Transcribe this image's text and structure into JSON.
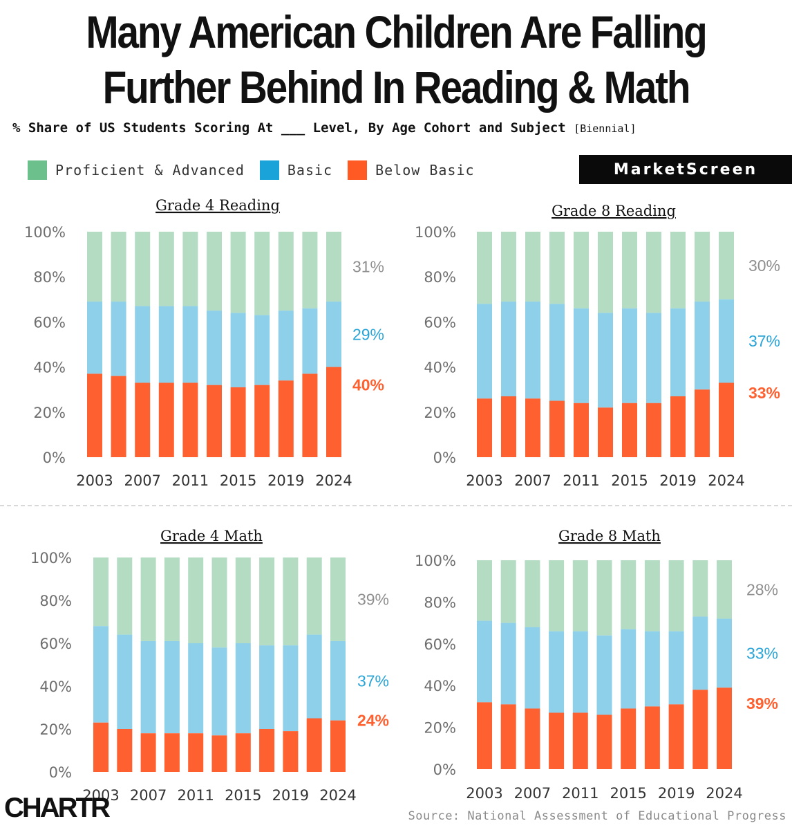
{
  "header": {
    "title_line1": "Many American Children Are Falling",
    "title_line2": "Further Behind In Reading & Math",
    "subtitle": "% Share of US Students Scoring At ___ Level, By Age Cohort and Subject",
    "subtitle_tag": "[Biennial]",
    "brand": "MarketScreen"
  },
  "legend": [
    {
      "label": "Proficient & Advanced",
      "color": "#6cc08b"
    },
    {
      "label": "Basic",
      "color": "#1aa3d8"
    },
    {
      "label": "Below Basic",
      "color": "#ff5a24"
    }
  ],
  "colors": {
    "proficient": "#b3dcc3",
    "basic": "#8ecfea",
    "below": "#fe602f",
    "label_proficient": "#8f8f8f",
    "label_basic": "#2aa4d6",
    "label_below": "#fe602f"
  },
  "chart_data": [
    {
      "type": "bar",
      "stacked": true,
      "title": "Grade 4 Reading",
      "categories": [
        "2003",
        "2005",
        "2007",
        "2009",
        "2011",
        "2013",
        "2015",
        "2017",
        "2019",
        "2022",
        "2024"
      ],
      "x_tick_labels": [
        "2003",
        "2007",
        "2011",
        "2015",
        "2019",
        "2024"
      ],
      "y_tick_labels": [
        "0%",
        "20%",
        "40%",
        "60%",
        "80%",
        "100%"
      ],
      "ylim": [
        0,
        100
      ],
      "series": [
        {
          "name": "Below Basic",
          "values": [
            37,
            36,
            33,
            33,
            33,
            32,
            31,
            32,
            34,
            37,
            40
          ]
        },
        {
          "name": "Basic",
          "values": [
            32,
            33,
            34,
            34,
            34,
            33,
            33,
            31,
            31,
            29,
            29
          ]
        },
        {
          "name": "Proficient & Advanced",
          "values": [
            31,
            31,
            33,
            33,
            33,
            35,
            36,
            37,
            35,
            34,
            31
          ]
        }
      ],
      "end_labels": {
        "proficient": "31%",
        "basic": "29%",
        "below": "40%"
      }
    },
    {
      "type": "bar",
      "stacked": true,
      "title": "Grade 8 Reading",
      "categories": [
        "2003",
        "2005",
        "2007",
        "2009",
        "2011",
        "2013",
        "2015",
        "2017",
        "2019",
        "2022",
        "2024"
      ],
      "x_tick_labels": [
        "2003",
        "2007",
        "2011",
        "2015",
        "2019",
        "2024"
      ],
      "y_tick_labels": [
        "0%",
        "20%",
        "40%",
        "60%",
        "80%",
        "100%"
      ],
      "ylim": [
        0,
        100
      ],
      "series": [
        {
          "name": "Below Basic",
          "values": [
            26,
            27,
            26,
            25,
            24,
            22,
            24,
            24,
            27,
            30,
            33
          ]
        },
        {
          "name": "Basic",
          "values": [
            42,
            42,
            43,
            43,
            42,
            42,
            42,
            40,
            39,
            39,
            37
          ]
        },
        {
          "name": "Proficient & Advanced",
          "values": [
            32,
            31,
            31,
            32,
            34,
            36,
            34,
            36,
            34,
            31,
            30
          ]
        }
      ],
      "end_labels": {
        "proficient": "30%",
        "basic": "37%",
        "below": "33%"
      }
    },
    {
      "type": "bar",
      "stacked": true,
      "title": "Grade 4 Math",
      "categories": [
        "2003",
        "2005",
        "2007",
        "2009",
        "2011",
        "2013",
        "2015",
        "2017",
        "2019",
        "2022",
        "2024"
      ],
      "x_tick_labels": [
        "2003",
        "2007",
        "2011",
        "2015",
        "2019",
        "2024"
      ],
      "y_tick_labels": [
        "0%",
        "20%",
        "40%",
        "60%",
        "80%",
        "100%"
      ],
      "ylim": [
        0,
        100
      ],
      "series": [
        {
          "name": "Below Basic",
          "values": [
            23,
            20,
            18,
            18,
            18,
            17,
            18,
            20,
            19,
            25,
            24
          ]
        },
        {
          "name": "Basic",
          "values": [
            45,
            44,
            43,
            43,
            42,
            41,
            42,
            39,
            40,
            39,
            37
          ]
        },
        {
          "name": "Proficient & Advanced",
          "values": [
            32,
            36,
            39,
            39,
            40,
            42,
            40,
            41,
            41,
            36,
            39
          ]
        }
      ],
      "end_labels": {
        "proficient": "39%",
        "basic": "37%",
        "below": "24%"
      }
    },
    {
      "type": "bar",
      "stacked": true,
      "title": "Grade 8 Math",
      "categories": [
        "2003",
        "2005",
        "2007",
        "2009",
        "2011",
        "2013",
        "2015",
        "2017",
        "2019",
        "2022",
        "2024"
      ],
      "x_tick_labels": [
        "2003",
        "2007",
        "2011",
        "2015",
        "2019",
        "2024"
      ],
      "y_tick_labels": [
        "0%",
        "20%",
        "40%",
        "60%",
        "80%",
        "100%"
      ],
      "ylim": [
        0,
        100
      ],
      "series": [
        {
          "name": "Below Basic",
          "values": [
            32,
            31,
            29,
            27,
            27,
            26,
            29,
            30,
            31,
            38,
            39
          ]
        },
        {
          "name": "Basic",
          "values": [
            39,
            39,
            39,
            39,
            39,
            38,
            38,
            36,
            35,
            35,
            33
          ]
        },
        {
          "name": "Proficient & Advanced",
          "values": [
            29,
            30,
            32,
            34,
            34,
            36,
            33,
            34,
            34,
            27,
            28
          ]
        }
      ],
      "end_labels": {
        "proficient": "28%",
        "basic": "33%",
        "below": "39%"
      }
    }
  ],
  "footer": {
    "logo": "CHARTR",
    "source": "Source: National Assessment of Educational Progress"
  }
}
